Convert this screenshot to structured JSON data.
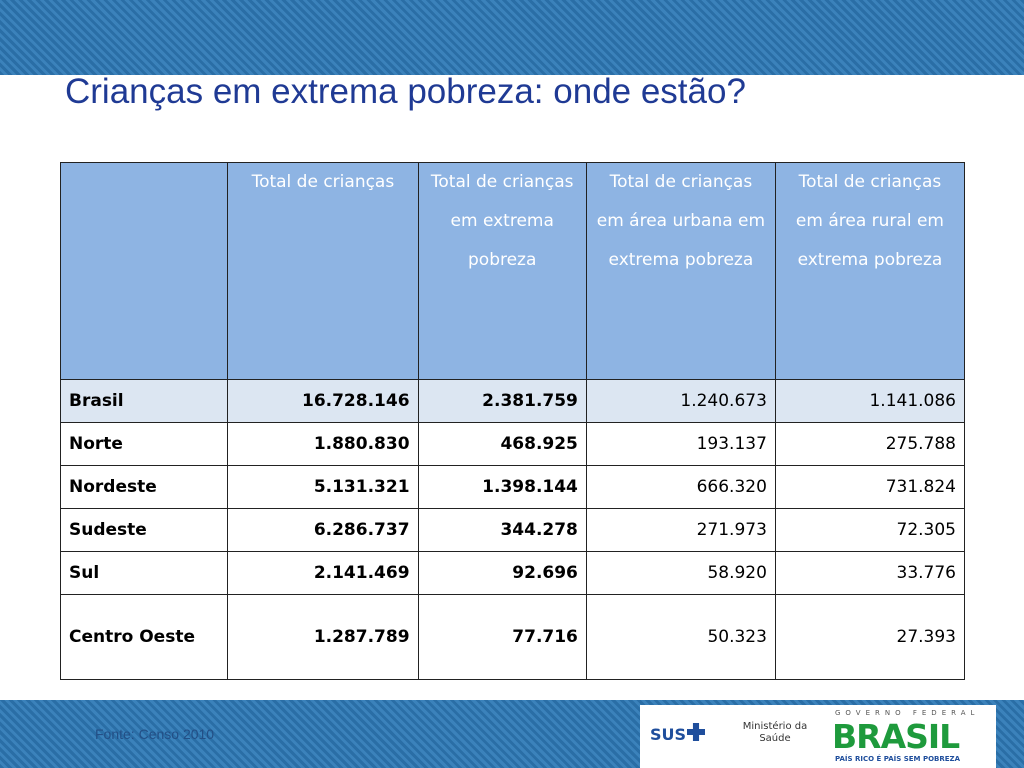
{
  "header": {
    "title": "Crianças em extrema pobreza: onde estão?"
  },
  "table": {
    "columns": [
      "Total de crianças",
      "Total de crianças em extrema pobreza",
      "Total de crianças em área urbana em extrema pobreza",
      "Total de crianças em área rural em extrema pobreza"
    ],
    "rows": [
      [
        "Brasil",
        "16.728.146",
        "2.381.759",
        "1.240.673",
        "1.141.086"
      ],
      [
        "Norte",
        "1.880.830",
        "468.925",
        "193.137",
        "275.788"
      ],
      [
        "Nordeste",
        "5.131.321",
        "1.398.144",
        "666.320",
        "731.824"
      ],
      [
        "Sudeste",
        "6.286.737",
        "344.278",
        "271.973",
        "72.305"
      ],
      [
        "Sul",
        "2.141.469",
        "92.696",
        "58.920",
        "33.776"
      ],
      [
        "Centro Oeste",
        "1.287.789",
        "77.716",
        "50.323",
        "27.393"
      ]
    ]
  },
  "footer": {
    "source": "Fonte: Censo 2010",
    "logos": {
      "sus": "SUS",
      "ministry": "Ministério da Saúde",
      "government": "GOVERNO FEDERAL",
      "brand": "BRASIL",
      "slogan": "PAÍS RICO É PAÍS SEM POBREZA"
    }
  }
}
